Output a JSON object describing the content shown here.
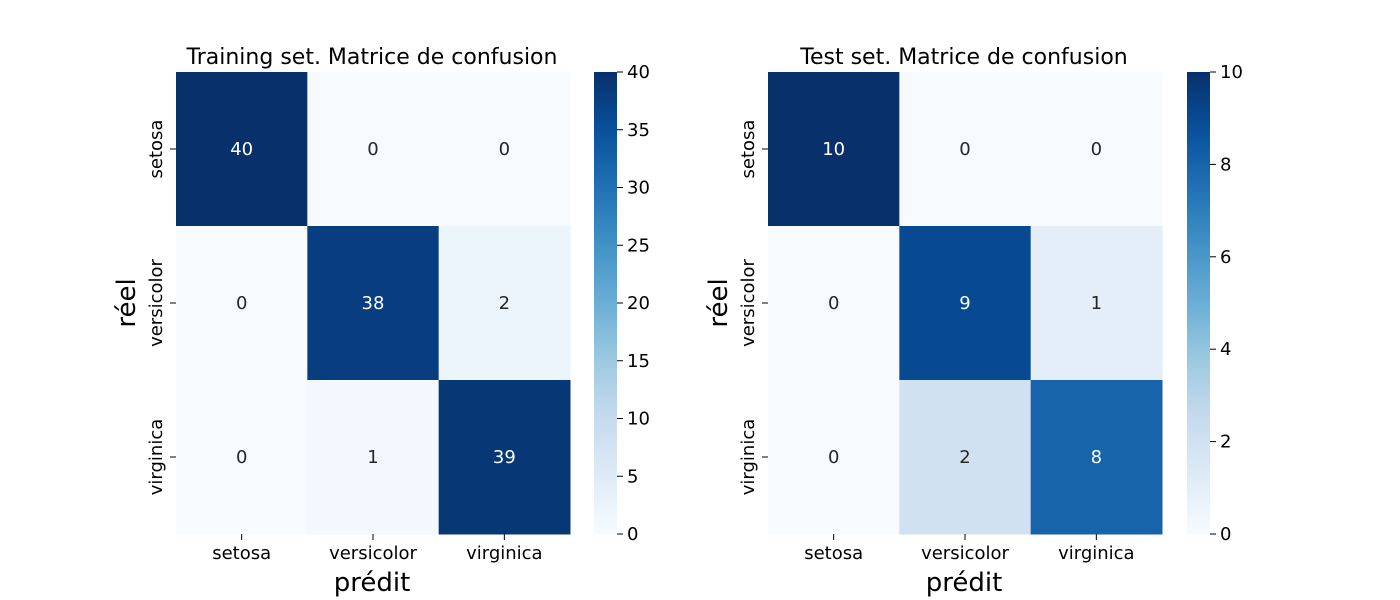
{
  "chart_data": [
    {
      "type": "heatmap",
      "title": "Training set. Matrice de confusion",
      "xlabel": "prédit",
      "ylabel": "réel",
      "x_categories": [
        "setosa",
        "versicolor",
        "virginica"
      ],
      "y_categories": [
        "setosa",
        "versicolor",
        "virginica"
      ],
      "values": [
        [
          40,
          0,
          0
        ],
        [
          0,
          38,
          2
        ],
        [
          0,
          1,
          39
        ]
      ],
      "colormap": "Blues",
      "colorbar": {
        "min": 0,
        "max": 40,
        "ticks": [
          "0",
          "5",
          "10",
          "15",
          "20",
          "25",
          "30",
          "35",
          "40"
        ]
      }
    },
    {
      "type": "heatmap",
      "title": "Test set. Matrice de confusion",
      "xlabel": "prédit",
      "ylabel": "réel",
      "x_categories": [
        "setosa",
        "versicolor",
        "virginica"
      ],
      "y_categories": [
        "setosa",
        "versicolor",
        "virginica"
      ],
      "values": [
        [
          10,
          0,
          0
        ],
        [
          0,
          9,
          1
        ],
        [
          0,
          2,
          8
        ]
      ],
      "colormap": "Blues",
      "colorbar": {
        "min": 0,
        "max": 10,
        "ticks": [
          "0",
          "2",
          "4",
          "6",
          "8",
          "10"
        ]
      }
    }
  ],
  "colors": {
    "low": "#f7fbff",
    "high": "#08306b"
  }
}
